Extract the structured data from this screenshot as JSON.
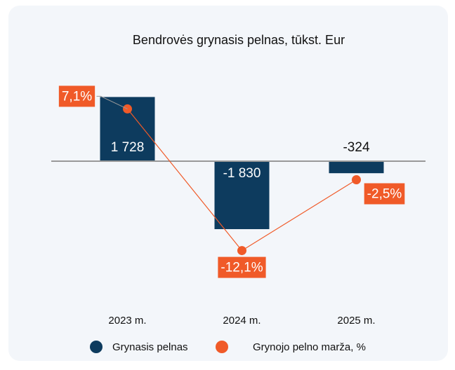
{
  "chart_data": {
    "type": "bar",
    "title": "Bendrovės grynasis pelnas, tūkst. Eur",
    "categories": [
      "2023 m.",
      "2024 m.",
      "2025 m."
    ],
    "ylim": [
      -3500,
      2500
    ],
    "y2lim": [
      -17.6,
      12.6
    ],
    "series": [
      {
        "name": "Grynasis pelnas",
        "type": "bar",
        "color": "#0d3b5e",
        "values": [
          1728,
          -1830,
          -324
        ],
        "value_labels": [
          "1 728",
          "-1 830",
          "-324"
        ]
      },
      {
        "name": "Grynojo pelno marža, %",
        "type": "line",
        "axis": "y2",
        "color": "#f05a28",
        "values": [
          7.1,
          -12.1,
          -2.5
        ],
        "value_labels": [
          "7,1%",
          "-12,1%",
          "-2,5%"
        ]
      }
    ]
  }
}
